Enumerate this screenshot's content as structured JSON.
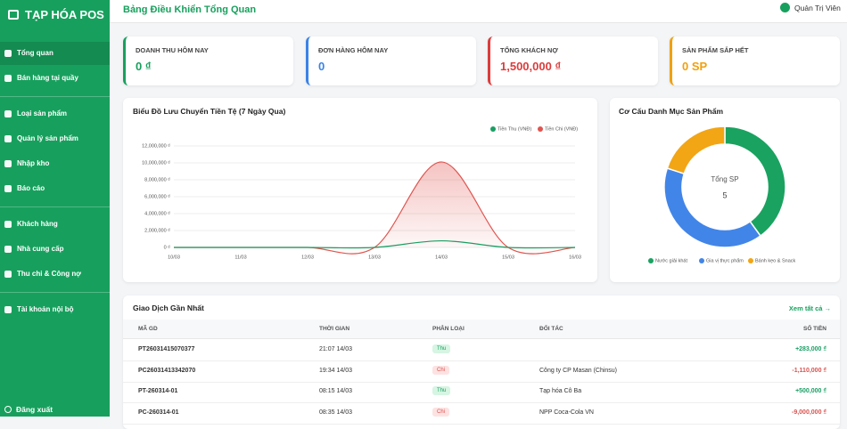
{
  "sidebar": {
    "brand": "TẠP HÓA POS",
    "menu": [
      [
        "Tổng quan",
        "Bán hàng tại quầy"
      ],
      [
        "Loại sản phẩm",
        "Quản lý sản phẩm",
        "Nhập kho",
        "Báo cáo"
      ],
      [
        "Khách hàng",
        "Nhà cung cấp",
        "Thu chi & Công nợ"
      ],
      [
        "Tài khoản nội bộ"
      ]
    ],
    "logout": "Đăng xuất"
  },
  "header": {
    "title": "Bảng Điều Khiển Tổng Quan",
    "user": "Quản Trị Viên"
  },
  "cards": [
    {
      "label": "DOANH THU HÔM NAY",
      "value": "0 ₫",
      "color": "#17a05d"
    },
    {
      "label": "ĐƠN HÀNG HÔM NAY",
      "value": "0",
      "color": "#3b82e6"
    },
    {
      "label": "TỔNG KHÁCH NỢ",
      "value": "1,500,000 ₫",
      "color": "#dc3c3c"
    },
    {
      "label": "SẢN PHẨM SẮP HẾT",
      "value": "0 SP",
      "color": "#f0a010"
    }
  ],
  "cashflow_chart": {
    "type": "line",
    "title": "Biểu Đồ Lưu Chuyển Tiền Tệ (7 Ngày Qua)",
    "categories": [
      "10/03",
      "11/03",
      "12/03",
      "13/03",
      "14/03",
      "15/03",
      "16/03"
    ],
    "series": [
      {
        "name": "Tiền Thu (VNĐ)",
        "color": "#1a9e63",
        "values": [
          0,
          0,
          0,
          0,
          783000,
          0,
          0
        ]
      },
      {
        "name": "Tiền Chi (VNĐ)",
        "color": "#e0544f",
        "values": [
          0,
          0,
          0,
          0,
          10110000,
          0,
          0
        ]
      }
    ],
    "ylim": [
      0,
      12000000
    ],
    "yticks": [
      {
        "value": 0,
        "label": "0 ₫"
      },
      {
        "value": 2000000,
        "label": "2,000,000 ₫"
      },
      {
        "value": 4000000,
        "label": "4,000,000 ₫"
      },
      {
        "value": 6000000,
        "label": "6,000,000 ₫"
      },
      {
        "value": 8000000,
        "label": "8,000,000 ₫"
      },
      {
        "value": 10000000,
        "label": "10,000,000 ₫"
      },
      {
        "value": 12000000,
        "label": "12,000,000 ₫"
      }
    ],
    "grid": true,
    "legend": "top-right"
  },
  "category_chart": {
    "type": "doughnut",
    "title": "Cơ Cấu Danh Mục Sản Phẩm",
    "center_label": "Tổng SP",
    "total": 5,
    "categories": [
      "Nước giải khát",
      "Gia vị thực phẩm",
      "Bánh kẹo & Snack"
    ],
    "values": [
      2,
      2,
      1
    ],
    "colors": [
      "#1aa260",
      "#4285e8",
      "#f2a515"
    ],
    "legend": "bottom"
  },
  "transactions": {
    "title": "Giao Dịch Gần Nhất",
    "view_all": "Xem tất cả →",
    "columns": [
      "MÃ GD",
      "THỜI GIAN",
      "PHÂN LOẠI",
      "ĐỐI TÁC",
      "SỐ TIỀN"
    ],
    "rows": [
      {
        "code": "PT26031415070377",
        "time": "21:07 14/03",
        "type": "Thu",
        "amount": "+283,000 ₫"
      },
      {
        "code": "PC26031413342070",
        "time": "19:34 14/03",
        "type": "Chi",
        "partner": "Công ty CP Masan (Chinsu)",
        "amount": "-1,110,000 ₫"
      },
      {
        "code": "PT-260314-01",
        "time": "08:15 14/03",
        "type": "Thu",
        "partner": "Tạp hóa Cô Ba",
        "amount": "+500,000 ₫"
      },
      {
        "code": "PC-260314-01",
        "time": "08:35 14/03",
        "type": "Chi",
        "partner": "NPP Coca-Cola VN",
        "amount": "-9,000,000 ₫"
      }
    ]
  }
}
